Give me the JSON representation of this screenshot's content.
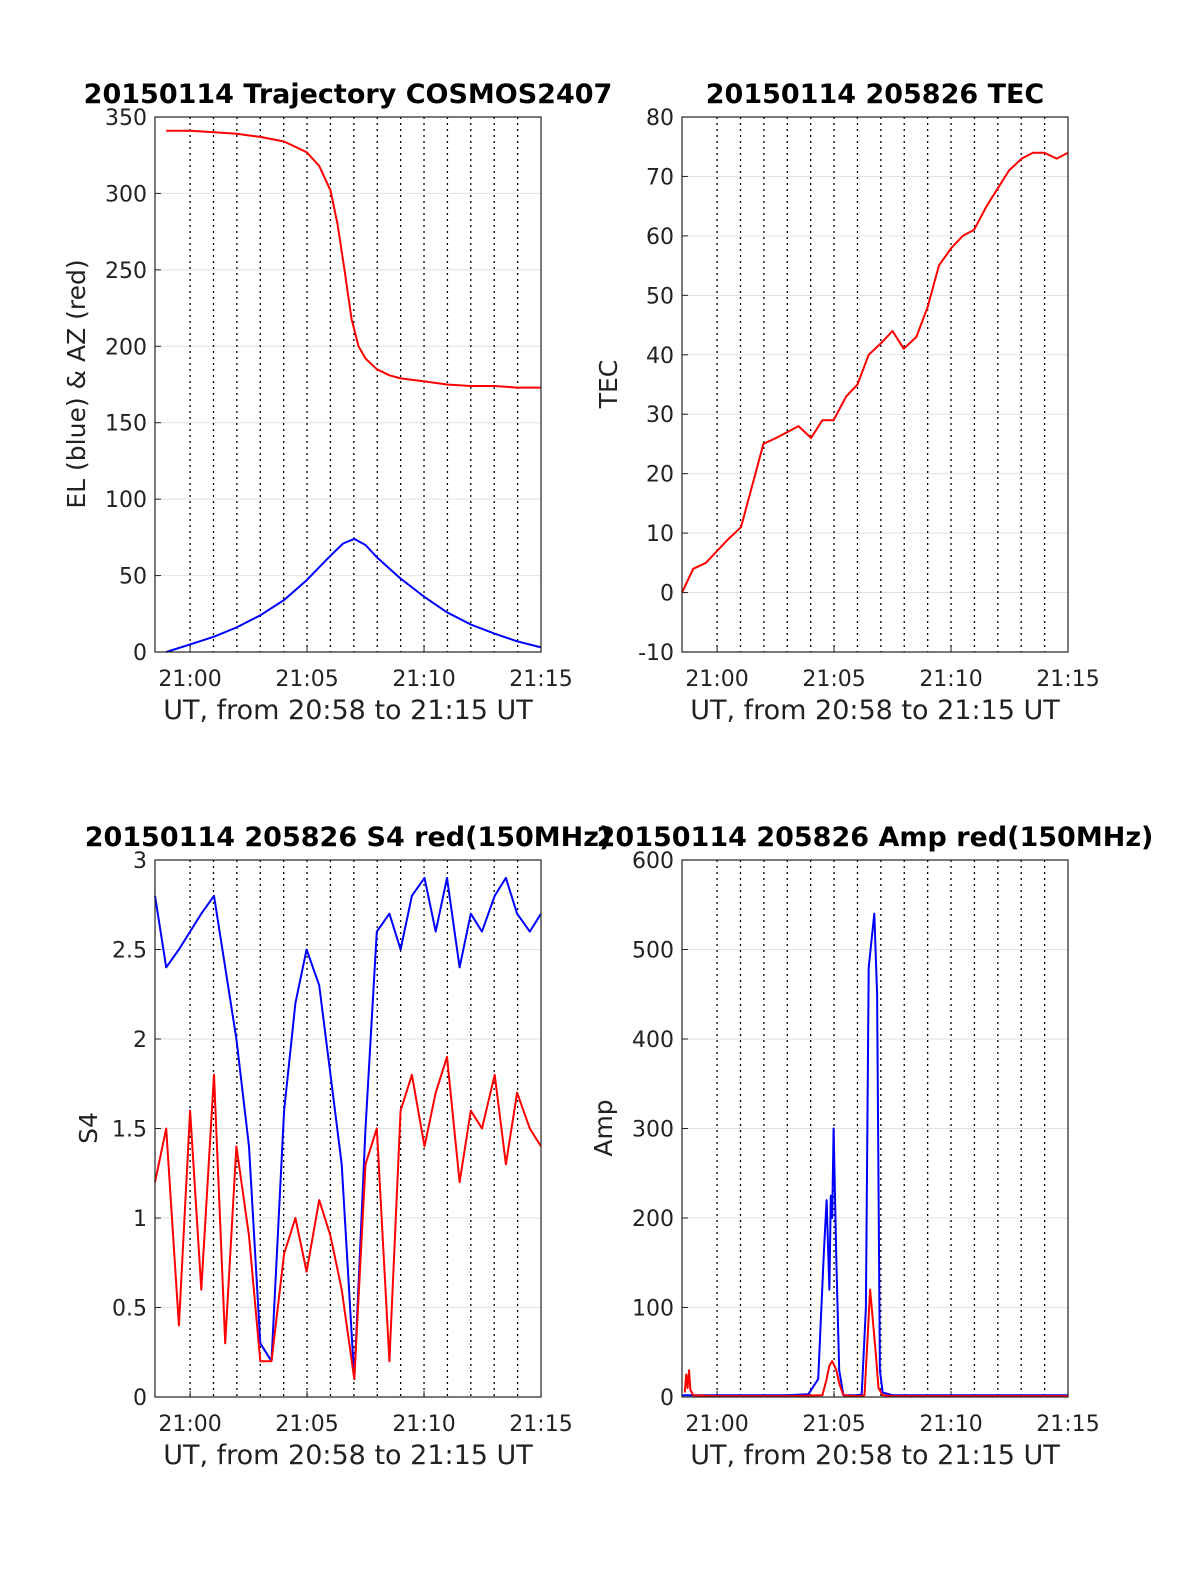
{
  "colors": {
    "elevation": "#0000ff",
    "azimuth": "#ff0000",
    "tec": "#ff0000",
    "s4_red": "#ff0000",
    "s4_blue": "#0000ff",
    "amp_red": "#ff0000",
    "amp_blue": "#0000ff"
  },
  "chart_data": [
    {
      "type": "line",
      "title": "20150114 Trajectory COSMOS2407",
      "xlabel": "UT, from 20:58 to 21:15 UT",
      "ylabel": "EL (blue) & AZ (red)",
      "xlim": [
        20.975,
        21.25
      ],
      "ylim": [
        0,
        350
      ],
      "x_ticks": [
        "21:00",
        "21:05",
        "21:10",
        "21:15"
      ],
      "y_ticks": [
        "0",
        "50",
        "100",
        "150",
        "200",
        "250",
        "300",
        "350"
      ],
      "grid": true,
      "series": [
        {
          "color": "blue",
          "x": [
            20.983,
            21.0,
            21.017,
            21.033,
            21.05,
            21.067,
            21.083,
            21.1,
            21.109,
            21.117,
            21.125,
            21.133,
            21.15,
            21.167,
            21.183,
            21.2,
            21.217,
            21.233,
            21.25
          ],
          "values": [
            0,
            5,
            10,
            16,
            24,
            34,
            47,
            63,
            71,
            74,
            70,
            62,
            48,
            36,
            26,
            18,
            12,
            7,
            3
          ]
        },
        {
          "color": "red",
          "x": [
            20.983,
            21.0,
            21.017,
            21.033,
            21.05,
            21.067,
            21.083,
            21.092,
            21.1,
            21.105,
            21.11,
            21.115,
            21.12,
            21.125,
            21.133,
            21.142,
            21.15,
            21.167,
            21.183,
            21.2,
            21.217,
            21.233,
            21.25
          ],
          "values": [
            341,
            341,
            340,
            339,
            337,
            334,
            327,
            318,
            302,
            280,
            250,
            218,
            200,
            192,
            185,
            181,
            179,
            177,
            175,
            174,
            174,
            173,
            173
          ]
        }
      ]
    },
    {
      "type": "line",
      "title": "20150114 205826 TEC",
      "xlabel": "UT, from 20:58 to 21:15 UT",
      "ylabel": "TEC",
      "xlim": [
        20.975,
        21.25
      ],
      "ylim": [
        -10,
        80
      ],
      "x_ticks": [
        "21:00",
        "21:05",
        "21:10",
        "21:15"
      ],
      "y_ticks": [
        "-10",
        "0",
        "10",
        "20",
        "30",
        "40",
        "50",
        "60",
        "70",
        "80"
      ],
      "grid": true,
      "series": [
        {
          "color": "red",
          "x": [
            20.975,
            20.983,
            20.992,
            21.0,
            21.008,
            21.017,
            21.025,
            21.033,
            21.042,
            21.05,
            21.058,
            21.067,
            21.075,
            21.083,
            21.092,
            21.1,
            21.108,
            21.117,
            21.125,
            21.133,
            21.142,
            21.15,
            21.158,
            21.167,
            21.175,
            21.183,
            21.192,
            21.2,
            21.208,
            21.217,
            21.225,
            21.233,
            21.242,
            21.25
          ],
          "values": [
            0,
            4,
            5,
            7,
            9,
            11,
            18,
            25,
            26,
            27,
            28,
            26,
            29,
            29,
            33,
            35,
            40,
            42,
            44,
            41,
            43,
            48,
            55,
            58,
            60,
            61,
            65,
            68,
            71,
            73,
            74,
            74,
            73,
            74
          ]
        }
      ]
    },
    {
      "type": "line",
      "title": "20150114 205826 S4 red(150MHz)",
      "xlabel": "UT, from 20:58 to 21:15 UT",
      "ylabel": "S4",
      "xlim": [
        20.975,
        21.25
      ],
      "ylim": [
        0,
        3
      ],
      "x_ticks": [
        "21:00",
        "21:05",
        "21:10",
        "21:15"
      ],
      "y_ticks": [
        "0",
        "0.5",
        "1",
        "1.5",
        "2",
        "2.5",
        "3"
      ],
      "grid": true,
      "series": [
        {
          "color": "blue",
          "x": [
            20.975,
            20.983,
            20.992,
            21.0,
            21.008,
            21.017,
            21.025,
            21.033,
            21.042,
            21.05,
            21.058,
            21.067,
            21.075,
            21.083,
            21.092,
            21.1,
            21.108,
            21.117,
            21.125,
            21.133,
            21.142,
            21.15,
            21.158,
            21.167,
            21.175,
            21.183,
            21.192,
            21.2,
            21.208,
            21.217,
            21.225,
            21.233,
            21.242,
            21.25
          ],
          "values": [
            2.8,
            2.4,
            2.5,
            2.6,
            2.7,
            2.8,
            2.4,
            2.0,
            1.4,
            0.3,
            0.2,
            1.6,
            2.2,
            2.5,
            2.3,
            1.8,
            1.3,
            0.1,
            1.5,
            2.6,
            2.7,
            2.5,
            2.8,
            2.9,
            2.6,
            2.9,
            2.4,
            2.7,
            2.6,
            2.8,
            2.9,
            2.7,
            2.6,
            2.7
          ]
        },
        {
          "color": "red",
          "x": [
            20.975,
            20.983,
            20.992,
            21.0,
            21.008,
            21.017,
            21.025,
            21.033,
            21.042,
            21.05,
            21.058,
            21.067,
            21.075,
            21.083,
            21.092,
            21.1,
            21.108,
            21.117,
            21.125,
            21.133,
            21.142,
            21.15,
            21.158,
            21.167,
            21.175,
            21.183,
            21.192,
            21.2,
            21.208,
            21.217,
            21.225,
            21.233,
            21.242,
            21.25
          ],
          "values": [
            1.2,
            1.5,
            0.4,
            1.6,
            0.6,
            1.8,
            0.3,
            1.4,
            0.9,
            0.2,
            0.2,
            0.8,
            1.0,
            0.7,
            1.1,
            0.9,
            0.6,
            0.1,
            1.3,
            1.5,
            0.2,
            1.6,
            1.8,
            1.4,
            1.7,
            1.9,
            1.2,
            1.6,
            1.5,
            1.8,
            1.3,
            1.7,
            1.5,
            1.4
          ]
        }
      ]
    },
    {
      "type": "line",
      "title": "20150114 205826 Amp red(150MHz)",
      "xlabel": "UT, from 20:58 to 21:15 UT",
      "ylabel": "Amp",
      "xlim": [
        20.975,
        21.25
      ],
      "ylim": [
        0,
        600
      ],
      "x_ticks": [
        "21:00",
        "21:05",
        "21:10",
        "21:15"
      ],
      "y_ticks": [
        "0",
        "100",
        "200",
        "300",
        "400",
        "500",
        "600"
      ],
      "grid": true,
      "series": [
        {
          "color": "blue",
          "x": [
            20.975,
            21.0,
            21.05,
            21.065,
            21.072,
            21.076,
            21.078,
            21.08,
            21.081,
            21.082,
            21.083,
            21.085,
            21.087,
            21.09,
            21.1,
            21.103,
            21.106,
            21.108,
            21.11,
            21.112,
            21.114,
            21.116,
            21.118,
            21.125,
            21.15,
            21.2,
            21.25
          ],
          "values": [
            2,
            2,
            2,
            3,
            20,
            160,
            220,
            120,
            225,
            200,
            300,
            150,
            30,
            2,
            2,
            3,
            100,
            480,
            510,
            540,
            450,
            30,
            5,
            2,
            2,
            2,
            2
          ]
        },
        {
          "color": "red",
          "x": [
            20.977,
            20.978,
            20.979,
            20.98,
            20.981,
            20.983,
            21.0,
            21.05,
            21.075,
            21.078,
            21.08,
            21.082,
            21.085,
            21.087,
            21.09,
            21.1,
            21.105,
            21.107,
            21.109,
            21.111,
            21.113,
            21.115,
            21.118,
            21.125,
            21.15,
            21.2,
            21.25
          ],
          "values": [
            5,
            25,
            10,
            30,
            8,
            2,
            1,
            1,
            2,
            20,
            35,
            40,
            30,
            15,
            2,
            1,
            2,
            60,
            120,
            85,
            50,
            10,
            2,
            1,
            1,
            1,
            1
          ]
        }
      ]
    }
  ]
}
